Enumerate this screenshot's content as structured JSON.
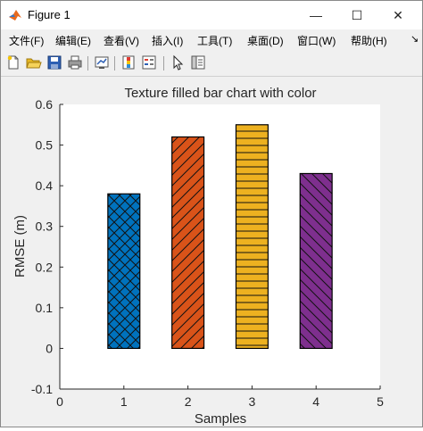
{
  "window": {
    "title": "Figure 1",
    "controls": {
      "minimize": "—",
      "maximize": "☐",
      "close": "✕"
    }
  },
  "menu": {
    "items": [
      "文件(F)",
      "编辑(E)",
      "查看(V)",
      "插入(I)",
      "工具(T)",
      "桌面(D)",
      "窗口(W)",
      "帮助(H)"
    ],
    "overflow": "↘"
  },
  "toolbar": {
    "icons": [
      "new-figure-icon",
      "open-icon",
      "save-icon",
      "print-icon",
      "link-plot-icon",
      "insert-colorbar-icon",
      "insert-legend-icon",
      "edit-plot-pointer-icon",
      "property-inspector-icon"
    ]
  },
  "chart_data": {
    "type": "bar",
    "title": "Texture filled bar chart with color",
    "xlabel": "Samples",
    "ylabel": "RMSE (m)",
    "categories": [
      1,
      2,
      3,
      4
    ],
    "values": [
      0.38,
      0.52,
      0.55,
      0.43
    ],
    "colors": [
      "#0072BD",
      "#D95319",
      "#EDB120",
      "#7E2F8E"
    ],
    "hatches": [
      "cross",
      "forward-diagonal",
      "horizontal",
      "back-diagonal"
    ],
    "xlim": [
      0,
      5
    ],
    "ylim": [
      -0.1,
      0.6
    ],
    "xticks": [
      "0",
      "1",
      "2",
      "3",
      "4",
      "5"
    ],
    "yticks": [
      "-0.1",
      "0",
      "0.1",
      "0.2",
      "0.3",
      "0.4",
      "0.5",
      "0.6"
    ],
    "grid": false,
    "bar_width": 0.5
  }
}
